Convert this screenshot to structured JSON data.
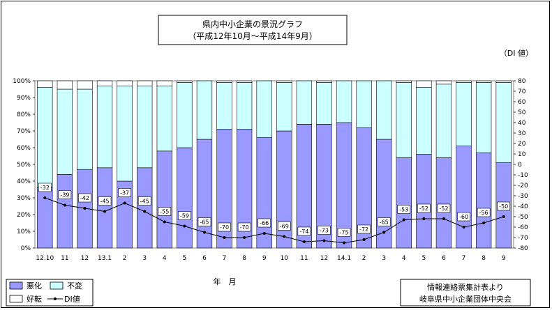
{
  "chart_data": {
    "type": "bar",
    "stacked": true,
    "title": "県内中小企業の景況グラフ",
    "subtitle": "（平成12年10月～平成14年9月）",
    "xlabel": "年　月",
    "y2label": "（DI 値）",
    "ylim": [
      0,
      100
    ],
    "y2lim": [
      -80,
      80
    ],
    "y_ticks": [
      "0%",
      "10%",
      "20%",
      "30%",
      "40%",
      "50%",
      "60%",
      "70%",
      "80%",
      "90%",
      "100%"
    ],
    "y2_ticks": [
      "-80",
      "-70",
      "-60",
      "-50",
      "-40",
      "-30",
      "-20",
      "-10",
      "0",
      "10",
      "20",
      "30",
      "40",
      "50",
      "60",
      "70",
      "80"
    ],
    "categories": [
      "12.10",
      "11",
      "12",
      "13.1",
      "2",
      "3",
      "4",
      "5",
      "6",
      "7",
      "8",
      "9",
      "10",
      "11",
      "12",
      "14.1",
      "2",
      "3",
      "4",
      "5",
      "6",
      "7",
      "8",
      "9"
    ],
    "series": [
      {
        "name": "悪化",
        "color": "#9999ff",
        "values": [
          36,
          44,
          47,
          48,
          40,
          48,
          58,
          60,
          65,
          71,
          71,
          66,
          70,
          74,
          74,
          75,
          72,
          65,
          54,
          56,
          54,
          61,
          57,
          51
        ]
      },
      {
        "name": "不変",
        "color": "#ccffff",
        "values": [
          60,
          51,
          48,
          49,
          57,
          49,
          39,
          39,
          35,
          28,
          28,
          34,
          29,
          26,
          25,
          25,
          28,
          35,
          45,
          40,
          44,
          38,
          42,
          48
        ]
      },
      {
        "name": "好転",
        "color": "#ffffff",
        "values": [
          4,
          5,
          5,
          3,
          3,
          3,
          3,
          1,
          0,
          1,
          1,
          0,
          1,
          0,
          1,
          0,
          0,
          0,
          1,
          4,
          2,
          1,
          1,
          1
        ]
      }
    ],
    "line_series": {
      "name": "DI値",
      "axis": "right",
      "values": [
        -32,
        -39,
        -42,
        -45,
        -37,
        -45,
        -55,
        -59,
        -65,
        -70,
        -70,
        -66,
        -69,
        -74,
        -73,
        -75,
        -72,
        -65,
        -53,
        -52,
        -52,
        -60,
        -56,
        -50
      ]
    },
    "legend": "bottom-left",
    "source": [
      "情報連絡票集計表より",
      "岐阜県中小企業団体中央会"
    ]
  }
}
